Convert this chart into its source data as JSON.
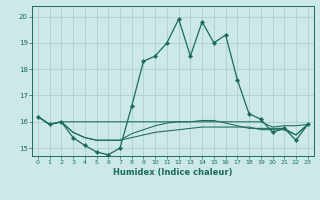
{
  "title": "",
  "xlabel": "Humidex (Indice chaleur)",
  "ylabel": "",
  "xlim": [
    -0.5,
    23.5
  ],
  "ylim": [
    14.7,
    20.4
  ],
  "xticks": [
    0,
    1,
    2,
    3,
    4,
    5,
    6,
    7,
    8,
    9,
    10,
    11,
    12,
    13,
    14,
    15,
    16,
    17,
    18,
    19,
    20,
    21,
    22,
    23
  ],
  "yticks": [
    15,
    16,
    17,
    18,
    19,
    20
  ],
  "bg_color": "#cce8e8",
  "grid_color": "#aacccc",
  "line_color": "#1a6b5a",
  "lines": [
    {
      "x": [
        0,
        1,
        2,
        3,
        4,
        5,
        6,
        7,
        8,
        9,
        10,
        11,
        12,
        13,
        14,
        15,
        16,
        17,
        18,
        19,
        20,
        21,
        22,
        23
      ],
      "y": [
        16.2,
        15.9,
        16.0,
        15.4,
        15.1,
        14.85,
        14.75,
        15.0,
        16.6,
        18.3,
        18.5,
        19.0,
        19.9,
        18.5,
        19.8,
        19.0,
        19.3,
        17.6,
        16.3,
        16.1,
        15.6,
        15.75,
        15.3,
        15.9
      ],
      "marker": true
    },
    {
      "x": [
        0,
        1,
        2,
        3,
        4,
        5,
        6,
        7,
        8,
        9,
        10,
        11,
        12,
        13,
        14,
        15,
        16,
        17,
        18,
        19,
        20,
        21,
        22,
        23
      ],
      "y": [
        16.2,
        15.9,
        16.0,
        16.0,
        16.0,
        16.0,
        16.0,
        16.0,
        16.0,
        16.0,
        16.0,
        16.0,
        16.0,
        16.0,
        16.0,
        16.0,
        16.0,
        16.0,
        16.0,
        16.0,
        15.8,
        15.85,
        15.85,
        15.9
      ],
      "marker": false
    },
    {
      "x": [
        0,
        1,
        2,
        3,
        4,
        5,
        6,
        7,
        8,
        9,
        10,
        11,
        12,
        13,
        14,
        15,
        16,
        17,
        18,
        19,
        20,
        21,
        22,
        23
      ],
      "y": [
        16.2,
        15.9,
        16.0,
        15.6,
        15.4,
        15.3,
        15.3,
        15.3,
        15.4,
        15.5,
        15.6,
        15.65,
        15.7,
        15.75,
        15.8,
        15.8,
        15.8,
        15.8,
        15.8,
        15.7,
        15.7,
        15.7,
        15.5,
        15.9
      ],
      "marker": false
    },
    {
      "x": [
        0,
        1,
        2,
        3,
        4,
        5,
        6,
        7,
        8,
        9,
        10,
        11,
        12,
        13,
        14,
        15,
        16,
        17,
        18,
        19,
        20,
        21,
        22,
        23
      ],
      "y": [
        16.2,
        15.9,
        16.0,
        15.6,
        15.4,
        15.3,
        15.3,
        15.3,
        15.55,
        15.7,
        15.85,
        15.95,
        16.0,
        16.0,
        16.05,
        16.05,
        15.95,
        15.85,
        15.75,
        15.75,
        15.75,
        15.75,
        15.5,
        15.9
      ],
      "marker": false
    }
  ]
}
